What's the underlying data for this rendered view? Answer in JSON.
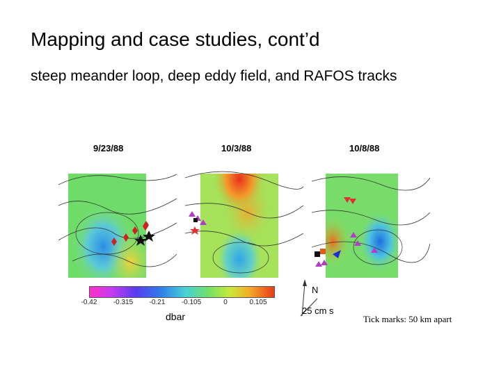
{
  "slide": {
    "title": "Mapping and case studies, cont’d",
    "subtitle": "steep meander loop, deep eddy field, and RAFOS tracks"
  },
  "figure": {
    "panels": [
      {
        "date": "9/23/88"
      },
      {
        "date": "10/3/88"
      },
      {
        "date": "10/8/88"
      }
    ],
    "colorbar": {
      "ticks": [
        "-0.42",
        "-0.315",
        "-0.21",
        "-0.105",
        "0",
        "0.105"
      ],
      "unit": "dbar"
    },
    "legend": {
      "north": "N",
      "scale": "25 cm s"
    }
  },
  "caption": "Tick marks: 50 km apart"
}
